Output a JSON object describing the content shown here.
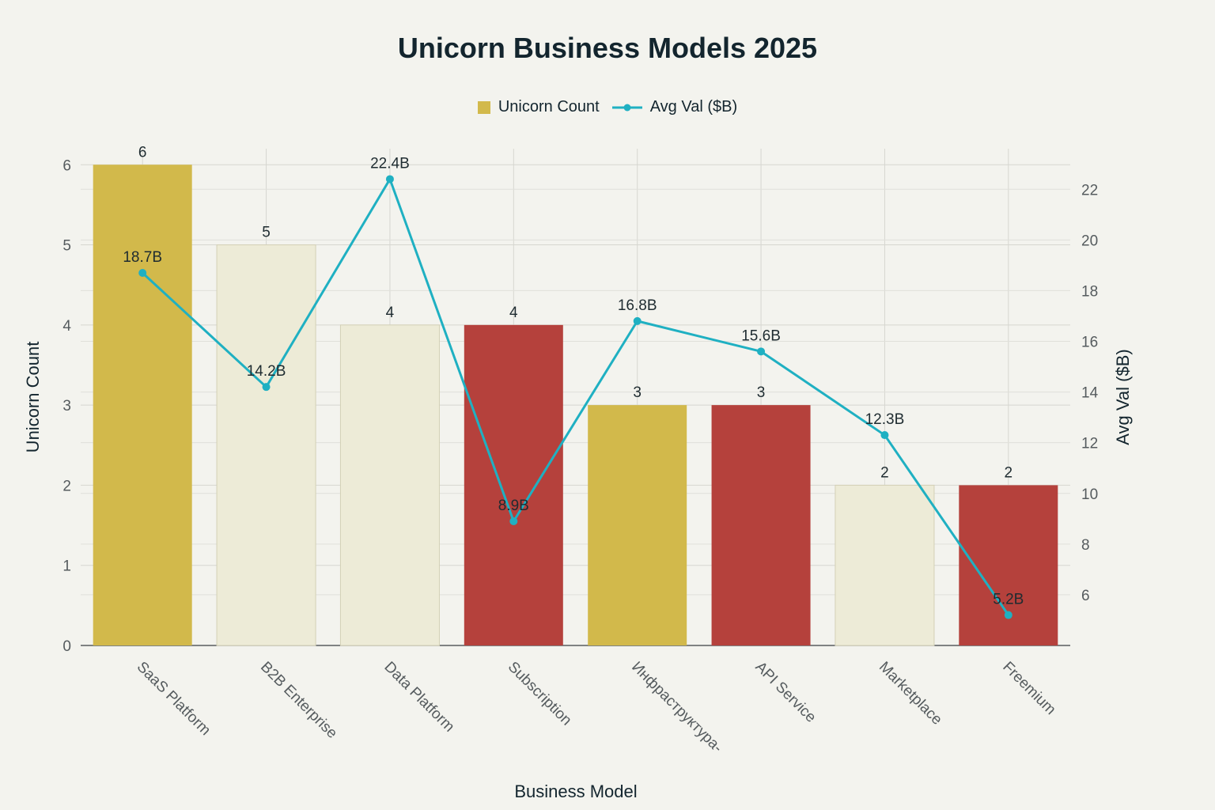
{
  "chart_data": {
    "type": "bar",
    "title": "Unicorn Business Models 2025",
    "xlabel": "Business Model",
    "ylabel": "Unicorn Count",
    "y2label": "Avg Val ($B)",
    "categories": [
      "SaaS Platform",
      "B2B Enterprise",
      "Data Platform",
      "Subscription",
      "Инфраструктура-",
      "API Service",
      "Marketplace",
      "Freemium"
    ],
    "series": [
      {
        "name": "Unicorn Count",
        "type": "bar",
        "axis": "left",
        "values": [
          6,
          5,
          4,
          4,
          3,
          3,
          2,
          2
        ],
        "labels": [
          "6",
          "5",
          "4",
          "4",
          "3",
          "3",
          "2",
          "2"
        ]
      },
      {
        "name": "Avg Val ($B)",
        "type": "line",
        "axis": "right",
        "values": [
          18.7,
          14.2,
          22.4,
          8.9,
          16.8,
          15.6,
          12.3,
          5.2
        ],
        "labels": [
          "18.7B",
          "14.2B",
          "22.4B",
          "8.9B",
          "16.8B",
          "15.6B",
          "12.3B",
          "5.2B"
        ]
      }
    ],
    "bar_colors": [
      "#d2b94b",
      "#edebd7",
      "#edebd7",
      "#b5413c",
      "#d2b94b",
      "#b5413c",
      "#edebd7",
      "#b5413c"
    ],
    "line_color": "#1fb0c2",
    "ylim": [
      0,
      6.2
    ],
    "y2lim": [
      4,
      23.6
    ],
    "yticks": [
      "0",
      "1",
      "2",
      "3",
      "4",
      "5",
      "6"
    ],
    "y2ticks": [
      "6",
      "8",
      "10",
      "12",
      "14",
      "16",
      "18",
      "20",
      "22"
    ],
    "grid": true,
    "legend_position": "top-center"
  }
}
